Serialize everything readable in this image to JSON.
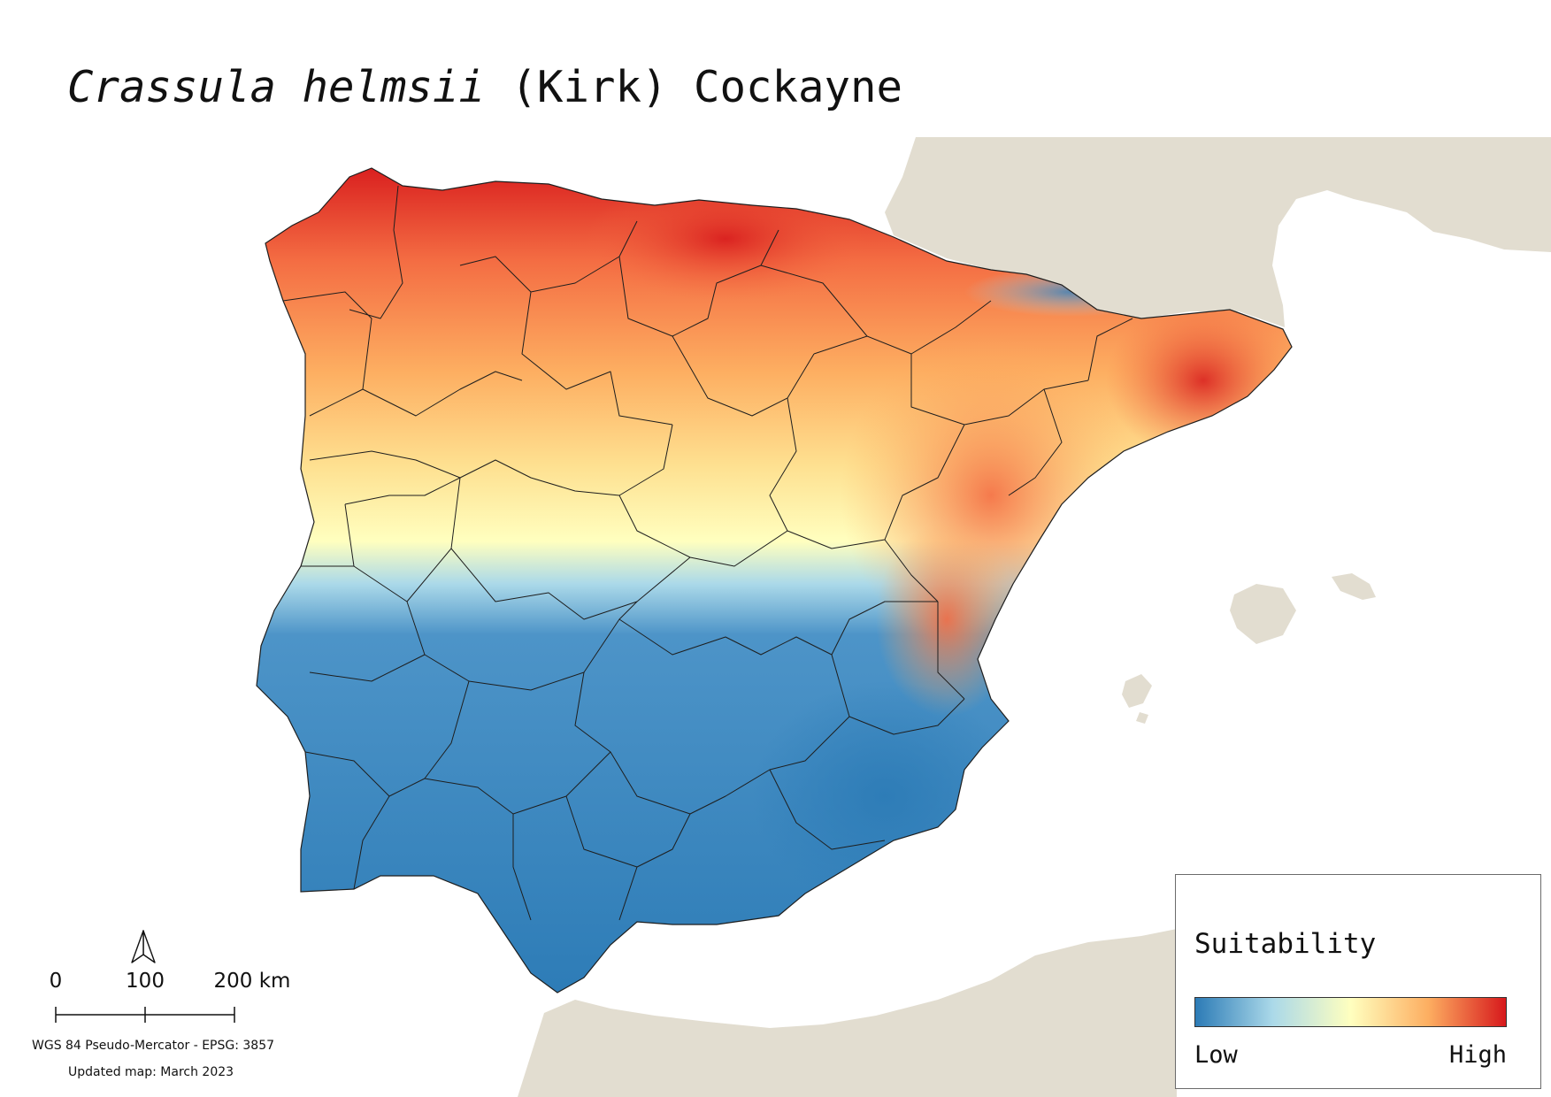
{
  "map": {
    "title_species": "Crassula helmsii",
    "title_author": " (Kirk) Cockayne",
    "colors": {
      "land_background": "#e2ddd0",
      "sea": "#ffffff",
      "boundary": "#1e1e1e",
      "ramp": [
        "#2c7bb6",
        "#abd9e9",
        "#ffffbf",
        "#fdae61",
        "#d7191c"
      ]
    }
  },
  "scale_bar": {
    "labels": [
      "0",
      "100",
      "200 km"
    ]
  },
  "north_arrow": {
    "icon": "north-arrow-icon"
  },
  "crs_text": "WGS 84 Pseudo-Mercator  - EPSG: 3857",
  "updated_text": "Updated map: March 2023",
  "legend": {
    "title": "Suitability",
    "low_label": "Low",
    "high_label": "High"
  }
}
